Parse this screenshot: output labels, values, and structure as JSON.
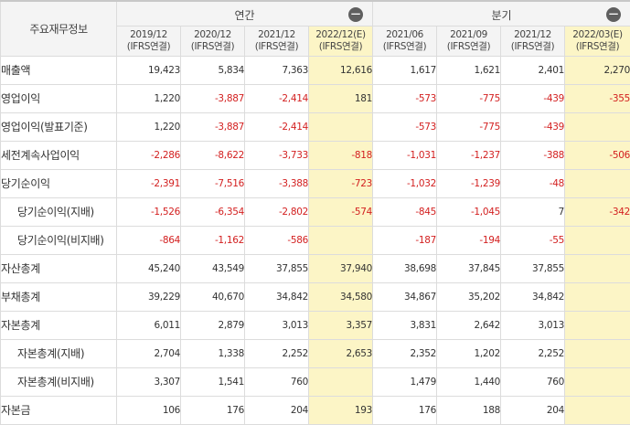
{
  "header": {
    "corner_label": "주요재무정보",
    "annual_label": "연간",
    "quarterly_label": "분기",
    "collapse_icon": "minus-icon",
    "columns": [
      {
        "period": "2019/12",
        "basis": "(IFRS연결)",
        "estimate": false
      },
      {
        "period": "2020/12",
        "basis": "(IFRS연결)",
        "estimate": false
      },
      {
        "period": "2021/12",
        "basis": "(IFRS연결)",
        "estimate": false
      },
      {
        "period": "2022/12(E)",
        "basis": "(IFRS연결)",
        "estimate": true
      },
      {
        "period": "2021/06",
        "basis": "(IFRS연결)",
        "estimate": false
      },
      {
        "period": "2021/09",
        "basis": "(IFRS연결)",
        "estimate": false
      },
      {
        "period": "2021/12",
        "basis": "(IFRS연결)",
        "estimate": false
      },
      {
        "period": "2022/03(E)",
        "basis": "(IFRS연결)",
        "estimate": true
      }
    ]
  },
  "colors": {
    "negative": "#d32020",
    "estimate_bg": "#fcf5c6"
  },
  "rows": [
    {
      "label": "매출액",
      "sub": false,
      "values": [
        "19,423",
        "5,834",
        "7,363",
        "12,616",
        "1,617",
        "1,621",
        "2,401",
        "2,270"
      ]
    },
    {
      "label": "영업이익",
      "sub": false,
      "values": [
        "1,220",
        "-3,887",
        "-2,414",
        "181",
        "-573",
        "-775",
        "-439",
        "-355"
      ]
    },
    {
      "label": "영업이익(발표기준)",
      "sub": false,
      "values": [
        "1,220",
        "-3,887",
        "-2,414",
        "",
        "-573",
        "-775",
        "-439",
        ""
      ]
    },
    {
      "label": "세전계속사업이익",
      "sub": false,
      "values": [
        "-2,286",
        "-8,622",
        "-3,733",
        "-818",
        "-1,031",
        "-1,237",
        "-388",
        "-506"
      ]
    },
    {
      "label": "당기순이익",
      "sub": false,
      "values": [
        "-2,391",
        "-7,516",
        "-3,388",
        "-723",
        "-1,032",
        "-1,239",
        "-48",
        ""
      ]
    },
    {
      "label": "당기순이익(지배)",
      "sub": true,
      "values": [
        "-1,526",
        "-6,354",
        "-2,802",
        "-574",
        "-845",
        "-1,045",
        "7",
        "-342"
      ]
    },
    {
      "label": "당기순이익(비지배)",
      "sub": true,
      "values": [
        "-864",
        "-1,162",
        "-586",
        "",
        "-187",
        "-194",
        "-55",
        ""
      ]
    },
    {
      "label": "자산총계",
      "sub": false,
      "values": [
        "45,240",
        "43,549",
        "37,855",
        "37,940",
        "38,698",
        "37,845",
        "37,855",
        ""
      ]
    },
    {
      "label": "부채총계",
      "sub": false,
      "values": [
        "39,229",
        "40,670",
        "34,842",
        "34,580",
        "34,867",
        "35,202",
        "34,842",
        ""
      ]
    },
    {
      "label": "자본총계",
      "sub": false,
      "values": [
        "6,011",
        "2,879",
        "3,013",
        "3,357",
        "3,831",
        "2,642",
        "3,013",
        ""
      ]
    },
    {
      "label": "자본총계(지배)",
      "sub": true,
      "values": [
        "2,704",
        "1,338",
        "2,252",
        "2,653",
        "2,352",
        "1,202",
        "2,252",
        ""
      ]
    },
    {
      "label": "자본총계(비지배)",
      "sub": true,
      "values": [
        "3,307",
        "1,541",
        "760",
        "",
        "1,479",
        "1,440",
        "760",
        ""
      ]
    },
    {
      "label": "자본금",
      "sub": false,
      "values": [
        "106",
        "176",
        "204",
        "193",
        "176",
        "188",
        "204",
        ""
      ]
    }
  ]
}
